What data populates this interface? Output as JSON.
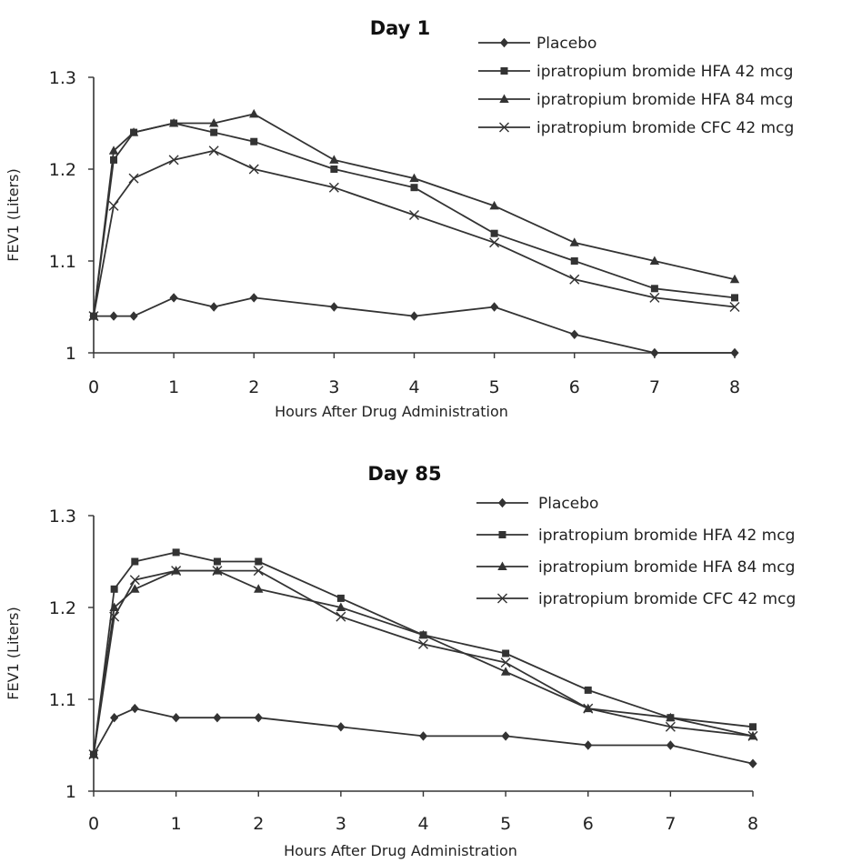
{
  "chart_data": [
    {
      "type": "line",
      "title": "Day 1",
      "xlabel": "Hours After Drug Administration",
      "ylabel": "FEV1 (Liters)",
      "xlim": [
        0,
        8
      ],
      "ylim": [
        1,
        1.3
      ],
      "xticks": [
        0,
        1,
        2,
        3,
        4,
        5,
        6,
        7,
        8
      ],
      "yticks": [
        "1",
        "1.1",
        "1.2",
        "1.3"
      ],
      "grid": false,
      "legend_position": "top-right",
      "series": [
        {
          "name": "Placebo",
          "marker": "diamond",
          "color": "#333333",
          "x": [
            0,
            0.25,
            0.5,
            1,
            1.5,
            2,
            3,
            4,
            5,
            6,
            7,
            8
          ],
          "y": [
            1.04,
            1.04,
            1.04,
            1.06,
            1.05,
            1.06,
            1.05,
            1.04,
            1.05,
            1.02,
            1.0,
            1.0
          ]
        },
        {
          "name": "ipratropium bromide HFA 42 mcg",
          "marker": "square",
          "color": "#333333",
          "x": [
            0,
            0.25,
            0.5,
            1,
            1.5,
            2,
            3,
            4,
            5,
            6,
            7,
            8
          ],
          "y": [
            1.04,
            1.21,
            1.24,
            1.25,
            1.24,
            1.23,
            1.2,
            1.18,
            1.13,
            1.1,
            1.07,
            1.06
          ]
        },
        {
          "name": "ipratropium bromide HFA 84 mcg",
          "marker": "triangle",
          "color": "#333333",
          "x": [
            0,
            0.25,
            0.5,
            1,
            1.5,
            2,
            3,
            4,
            5,
            6,
            7,
            8
          ],
          "y": [
            1.04,
            1.22,
            1.24,
            1.25,
            1.25,
            1.26,
            1.21,
            1.19,
            1.16,
            1.12,
            1.1,
            1.08
          ]
        },
        {
          "name": "ipratropium bromide CFC 42 mcg",
          "marker": "x",
          "color": "#333333",
          "x": [
            0,
            0.25,
            0.5,
            1,
            1.5,
            2,
            3,
            4,
            5,
            6,
            7,
            8
          ],
          "y": [
            1.04,
            1.16,
            1.19,
            1.21,
            1.22,
            1.2,
            1.18,
            1.15,
            1.12,
            1.08,
            1.06,
            1.05
          ]
        }
      ]
    },
    {
      "type": "line",
      "title": "Day 85",
      "xlabel": "Hours After Drug Administration",
      "ylabel": "FEV1 (Liters)",
      "xlim": [
        0,
        8
      ],
      "ylim": [
        1,
        1.3
      ],
      "xticks": [
        0,
        1,
        2,
        3,
        4,
        5,
        6,
        7,
        8
      ],
      "yticks": [
        "1",
        "1.1",
        "1.2",
        "1.3"
      ],
      "grid": false,
      "legend_position": "top-right",
      "series": [
        {
          "name": "Placebo",
          "marker": "diamond",
          "color": "#333333",
          "x": [
            0,
            0.25,
            0.5,
            1,
            1.5,
            2,
            3,
            4,
            5,
            6,
            7,
            8
          ],
          "y": [
            1.04,
            1.08,
            1.09,
            1.08,
            1.08,
            1.08,
            1.07,
            1.06,
            1.06,
            1.05,
            1.05,
            1.03
          ]
        },
        {
          "name": "ipratropium bromide HFA 42 mcg",
          "marker": "square",
          "color": "#333333",
          "x": [
            0,
            0.25,
            0.5,
            1,
            1.5,
            2,
            3,
            4,
            5,
            6,
            7,
            8
          ],
          "y": [
            1.04,
            1.22,
            1.25,
            1.26,
            1.25,
            1.25,
            1.21,
            1.17,
            1.15,
            1.11,
            1.08,
            1.07
          ]
        },
        {
          "name": "ipratropium bromide HFA 84 mcg",
          "marker": "triangle",
          "color": "#333333",
          "x": [
            0,
            0.25,
            0.5,
            1,
            1.5,
            2,
            3,
            4,
            5,
            6,
            7,
            8
          ],
          "y": [
            1.04,
            1.2,
            1.22,
            1.24,
            1.24,
            1.22,
            1.2,
            1.17,
            1.13,
            1.09,
            1.08,
            1.06
          ]
        },
        {
          "name": "ipratropium bromide CFC 42 mcg",
          "marker": "x",
          "color": "#333333",
          "x": [
            0,
            0.25,
            0.5,
            1,
            1.5,
            2,
            3,
            4,
            5,
            6,
            7,
            8
          ],
          "y": [
            1.04,
            1.19,
            1.23,
            1.24,
            1.24,
            1.24,
            1.19,
            1.16,
            1.14,
            1.09,
            1.07,
            1.06
          ]
        }
      ]
    }
  ]
}
